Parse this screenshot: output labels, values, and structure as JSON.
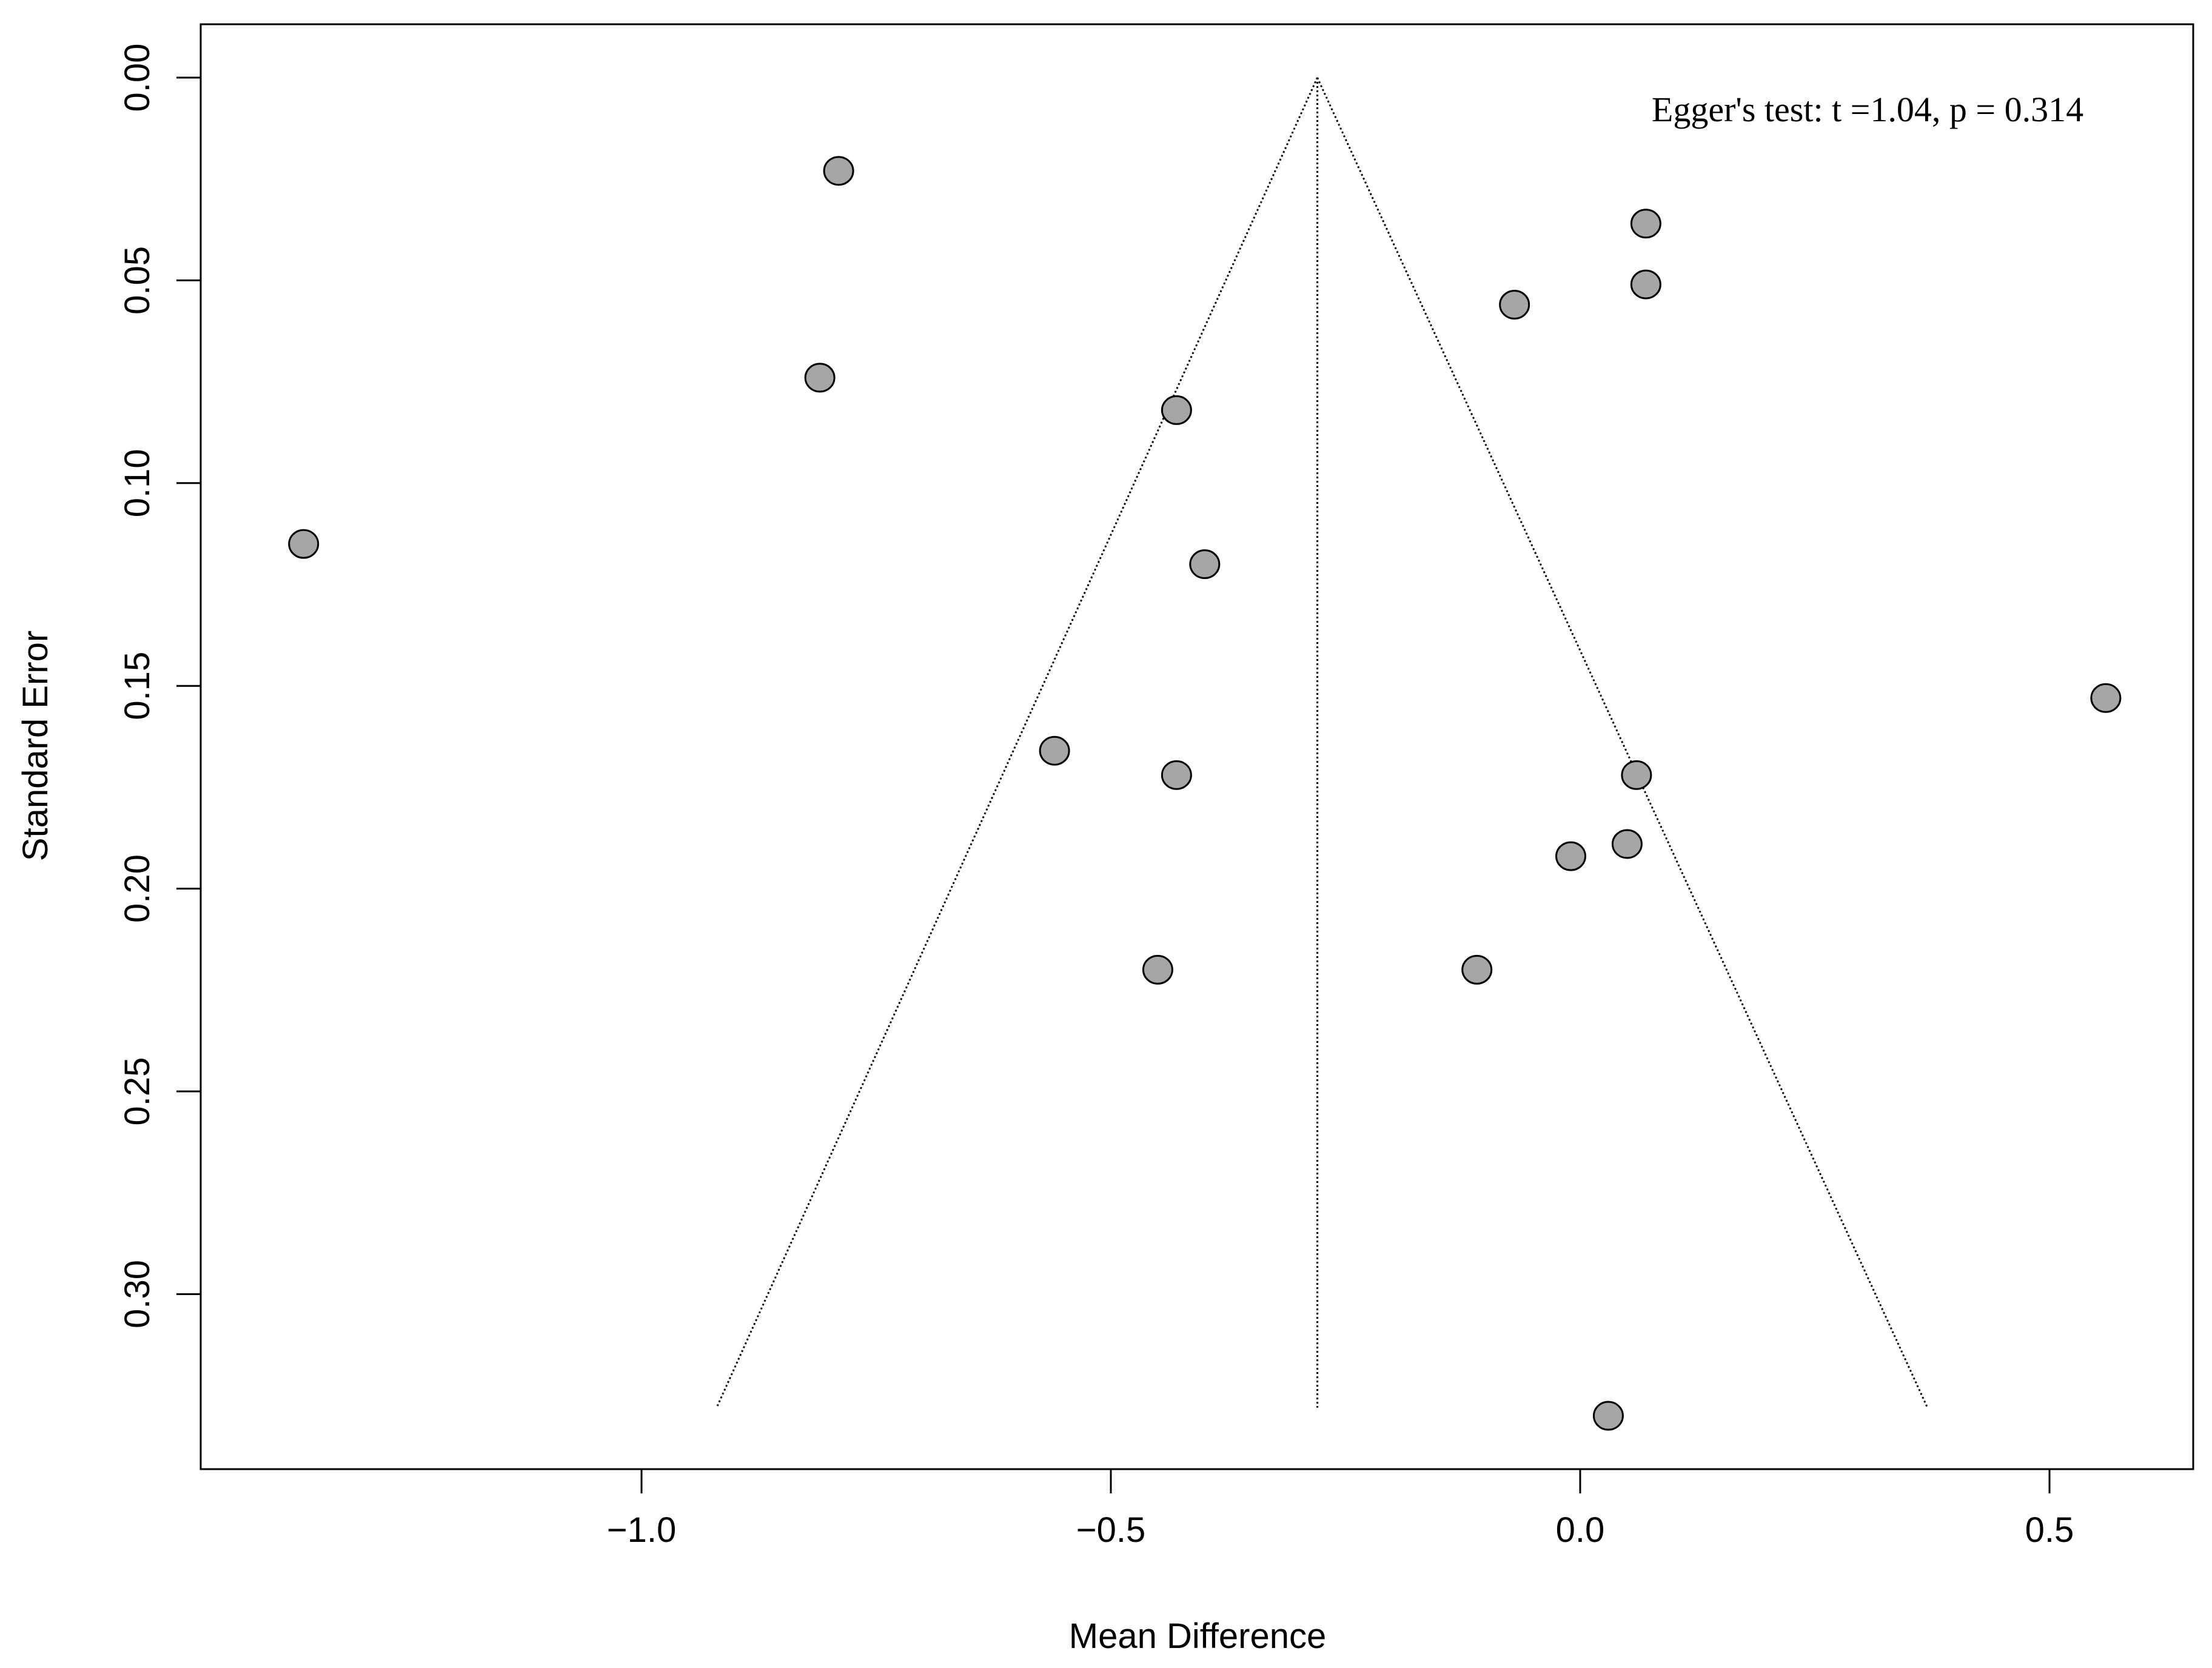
{
  "chart_data": {
    "type": "scatter",
    "subtype": "funnel-plot",
    "title": "",
    "xlabel": "Mean Difference",
    "ylabel": "Standard Error",
    "xlim": [
      -1.475,
      0.63
    ],
    "ylim": [
      0.0,
      0.343
    ],
    "y_reversed": true,
    "x_ticks": [
      -1.0,
      -0.5,
      0.0,
      0.5
    ],
    "x_tick_labels": [
      "−1.0",
      "−0.5",
      "0.0",
      "0.5"
    ],
    "y_ticks": [
      0.0,
      0.05,
      0.1,
      0.15,
      0.2,
      0.25,
      0.3
    ],
    "y_tick_labels": [
      "0.00",
      "0.05",
      "0.10",
      "0.15",
      "0.20",
      "0.25",
      "0.30"
    ],
    "grid": false,
    "annotation": "Egger's test: t =1.04, p = 0.314",
    "pooled_estimate": -0.28,
    "funnel": {
      "apex": [
        -0.28,
        0.0
      ],
      "left_base": [
        -0.92,
        0.328
      ],
      "right_base": [
        0.37,
        0.328
      ]
    },
    "point_color": "#a6a6a6",
    "series": [
      {
        "x": [
          -0.79,
          -0.81,
          -1.36,
          -0.43,
          -0.4,
          -0.56,
          -0.43,
          -0.45,
          0.07,
          0.07,
          -0.07,
          0.06,
          0.05,
          -0.01,
          -0.11,
          0.56,
          0.03
        ],
        "y": [
          0.023,
          0.074,
          0.115,
          0.082,
          0.12,
          0.166,
          0.172,
          0.22,
          0.036,
          0.051,
          0.056,
          0.172,
          0.189,
          0.192,
          0.22,
          0.153,
          0.33
        ]
      }
    ]
  }
}
